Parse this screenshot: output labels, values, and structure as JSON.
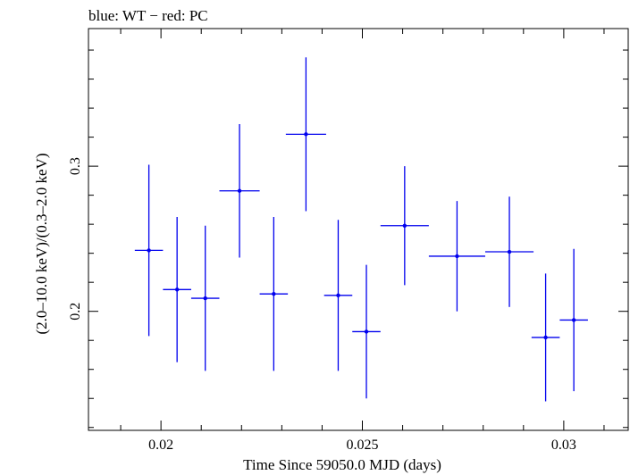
{
  "chart_data": {
    "type": "scatter",
    "title": "blue: WT − red: PC",
    "xlabel": "Time Since 59050.0 MJD (days)",
    "ylabel": "(2.0–10.0 keV)/(0.3–2.0 keV)",
    "xlim": [
      0.0182,
      0.0316
    ],
    "ylim": [
      0.118,
      0.3948
    ],
    "x_ticks": [
      {
        "value": 0.02,
        "label": "0.02"
      },
      {
        "value": 0.025,
        "label": "0.025"
      },
      {
        "value": 0.03,
        "label": "0.03"
      }
    ],
    "y_ticks": [
      {
        "value": 0.2,
        "label": "0.2"
      },
      {
        "value": 0.3,
        "label": "0.3"
      }
    ],
    "grid": false,
    "series": [
      {
        "color": "#0000ee",
        "points": [
          {
            "x": 0.0197,
            "xerr": 0.00035,
            "y": 0.242,
            "yerr_lo": 0.059,
            "yerr_hi": 0.059
          },
          {
            "x": 0.0204,
            "xerr": 0.00035,
            "y": 0.215,
            "yerr_lo": 0.05,
            "yerr_hi": 0.05
          },
          {
            "x": 0.0211,
            "xerr": 0.00035,
            "y": 0.209,
            "yerr_lo": 0.05,
            "yerr_hi": 0.05
          },
          {
            "x": 0.02195,
            "xerr": 0.0005,
            "y": 0.283,
            "yerr_lo": 0.046,
            "yerr_hi": 0.046
          },
          {
            "x": 0.0228,
            "xerr": 0.00035,
            "y": 0.212,
            "yerr_lo": 0.053,
            "yerr_hi": 0.053
          },
          {
            "x": 0.0236,
            "xerr": 0.0005,
            "y": 0.322,
            "yerr_lo": 0.053,
            "yerr_hi": 0.053
          },
          {
            "x": 0.0244,
            "xerr": 0.00035,
            "y": 0.211,
            "yerr_lo": 0.052,
            "yerr_hi": 0.052
          },
          {
            "x": 0.0251,
            "xerr": 0.00035,
            "y": 0.186,
            "yerr_lo": 0.046,
            "yerr_hi": 0.046
          },
          {
            "x": 0.02605,
            "xerr": 0.0006,
            "y": 0.259,
            "yerr_lo": 0.041,
            "yerr_hi": 0.041
          },
          {
            "x": 0.02735,
            "xerr": 0.0007,
            "y": 0.238,
            "yerr_lo": 0.038,
            "yerr_hi": 0.038
          },
          {
            "x": 0.02865,
            "xerr": 0.0006,
            "y": 0.241,
            "yerr_lo": 0.038,
            "yerr_hi": 0.038
          },
          {
            "x": 0.02955,
            "xerr": 0.00035,
            "y": 0.182,
            "yerr_lo": 0.044,
            "yerr_hi": 0.044
          },
          {
            "x": 0.03025,
            "xerr": 0.00035,
            "y": 0.194,
            "yerr_lo": 0.049,
            "yerr_hi": 0.049
          }
        ]
      }
    ]
  }
}
